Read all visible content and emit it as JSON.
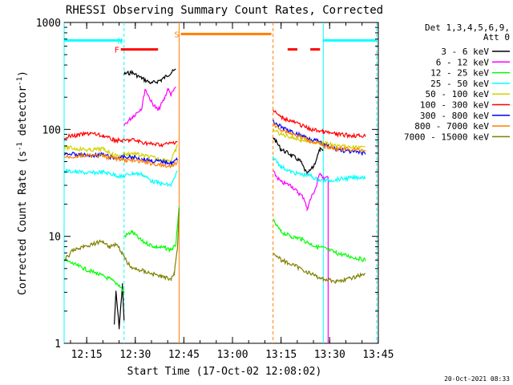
{
  "chart_data": {
    "type": "line",
    "title": "RHESSI Observing Summary Count Rates, Corrected",
    "xlabel": "Start Time (17-Oct-02 12:08:02)",
    "ylabel": "Corrected Count Rate (s",
    "ylabel_sup": "-1",
    "ylabel_tail": " detector",
    "ylabel_close": ")",
    "footer_timestamp": "20-Oct-2021 08:33",
    "y_scale": "log",
    "ylim": [
      1,
      1000
    ],
    "xlim_minutes_after_start": [
      0,
      97
    ],
    "y_ticks": [
      {
        "value": 1,
        "label": "1"
      },
      {
        "value": 10,
        "label": "10"
      },
      {
        "value": 100,
        "label": "100"
      },
      {
        "value": 1000,
        "label": "1000"
      }
    ],
    "x_ticks": [
      {
        "value": 6.97,
        "label": "12:15"
      },
      {
        "value": 21.97,
        "label": "12:30"
      },
      {
        "value": 36.97,
        "label": "12:45"
      },
      {
        "value": 51.97,
        "label": "13:00"
      },
      {
        "value": 66.97,
        "label": "13:15"
      },
      {
        "value": 81.97,
        "label": "13:30"
      },
      {
        "value": 96.97,
        "label": "13:45"
      }
    ],
    "legend_header": [
      "Det 1,3,4,5,6,9,",
      "Att 0"
    ],
    "legend_position": "right",
    "series": [
      {
        "name": "3 - 6 keV",
        "color": "#000000",
        "segments": [
          [
            [
              15.5,
              1.5
            ],
            [
              16,
              3
            ],
            [
              17,
              1.4
            ],
            [
              18,
              3.5
            ],
            [
              18.5,
              1.6
            ]
          ],
          [
            [
              18.5,
              330
            ],
            [
              21,
              340
            ],
            [
              24,
              300
            ],
            [
              27,
              270
            ],
            [
              30,
              290
            ],
            [
              33,
              340
            ],
            [
              34.5,
              360
            ]
          ],
          [
            [
              64.5,
              85
            ],
            [
              67,
              65
            ],
            [
              70,
              58
            ],
            [
              73,
              50
            ],
            [
              75,
              38
            ],
            [
              77,
              45
            ],
            [
              79,
              65
            ],
            [
              80,
              62
            ]
          ]
        ]
      },
      {
        "name": "6 - 12 keV",
        "color": "#ff00ff",
        "segments": [
          [
            [
              18.5,
              110
            ],
            [
              21,
              130
            ],
            [
              24,
              160
            ],
            [
              25,
              240
            ],
            [
              27,
              180
            ],
            [
              29,
              150
            ],
            [
              31,
              195
            ],
            [
              32,
              240
            ],
            [
              33,
              210
            ],
            [
              34.5,
              250
            ]
          ],
          [
            [
              64.5,
              40
            ],
            [
              67,
              32
            ],
            [
              70,
              30
            ],
            [
              72,
              26
            ],
            [
              74,
              23
            ],
            [
              75,
              18
            ],
            [
              76,
              22
            ],
            [
              78,
              30
            ],
            [
              79,
              40
            ],
            [
              80,
              35
            ]
          ],
          [
            [
              80,
              35
            ],
            [
              81.5,
              35
            ],
            [
              81.5,
              1
            ]
          ]
        ]
      },
      {
        "name": "12 - 25 keV",
        "color": "#00ff00",
        "segments": [
          [
            [
              0,
              6
            ],
            [
              3,
              5.5
            ],
            [
              6,
              5
            ],
            [
              10,
              4.5
            ],
            [
              14,
              4
            ],
            [
              17,
              3.5
            ],
            [
              18.5,
              3
            ]
          ],
          [
            [
              18.5,
              10
            ],
            [
              21,
              11
            ],
            [
              24,
              9
            ],
            [
              28,
              8
            ],
            [
              31,
              7.8
            ],
            [
              33,
              7.5
            ],
            [
              34,
              8
            ],
            [
              34.5,
              8.5
            ],
            [
              35,
              12
            ],
            [
              35.5,
              20
            ]
          ],
          [
            [
              64.5,
              14
            ],
            [
              67,
              11
            ],
            [
              70,
              10
            ],
            [
              73,
              9.5
            ],
            [
              76,
              8.5
            ],
            [
              78,
              8
            ],
            [
              80,
              7.8
            ],
            [
              84,
              7
            ],
            [
              88,
              6.5
            ],
            [
              93,
              6
            ]
          ]
        ]
      },
      {
        "name": "25 - 50 keV",
        "color": "#00ffff",
        "segments": [
          [
            [
              0,
              41
            ],
            [
              4,
              40
            ],
            [
              8,
              39
            ],
            [
              12,
              40
            ],
            [
              15,
              38
            ],
            [
              18,
              36
            ],
            [
              21,
              39
            ],
            [
              24,
              38
            ],
            [
              27,
              33
            ],
            [
              30,
              31
            ],
            [
              33,
              30
            ],
            [
              35,
              40
            ]
          ],
          [
            [
              64.5,
              55
            ],
            [
              67,
              45
            ],
            [
              70,
              40
            ],
            [
              73,
              38
            ],
            [
              76,
              37
            ],
            [
              78,
              34
            ],
            [
              80,
              33
            ],
            [
              84,
              34
            ],
            [
              88,
              35
            ],
            [
              93,
              36
            ]
          ]
        ]
      },
      {
        "name": "50 - 100 keV",
        "color": "#d2d200",
        "segments": [
          [
            [
              0,
              68
            ],
            [
              4,
              66
            ],
            [
              8,
              64
            ],
            [
              12,
              66
            ],
            [
              15,
              58
            ],
            [
              17,
              56
            ],
            [
              18.5,
              58
            ],
            [
              21,
              60
            ],
            [
              24,
              57
            ],
            [
              27,
              55
            ],
            [
              30,
              52
            ],
            [
              33,
              51
            ],
            [
              35,
              70
            ]
          ],
          [
            [
              64.5,
              100
            ],
            [
              67,
              90
            ],
            [
              70,
              85
            ],
            [
              73,
              80
            ],
            [
              76,
              78
            ],
            [
              78,
              76
            ],
            [
              80,
              75
            ],
            [
              84,
              70
            ],
            [
              88,
              68
            ],
            [
              93,
              67
            ]
          ]
        ]
      },
      {
        "name": "100 - 300 keV",
        "color": "#ff0000",
        "segments": [
          [
            [
              0,
              85
            ],
            [
              4,
              88
            ],
            [
              8,
              92
            ],
            [
              12,
              87
            ],
            [
              15,
              80
            ],
            [
              18,
              78
            ],
            [
              21,
              80
            ],
            [
              24,
              76
            ],
            [
              27,
              73
            ],
            [
              30,
              72
            ],
            [
              33,
              74
            ],
            [
              35,
              78
            ]
          ],
          [
            [
              64.5,
              150
            ],
            [
              67,
              130
            ],
            [
              70,
              120
            ],
            [
              73,
              110
            ],
            [
              76,
              100
            ],
            [
              78,
              98
            ],
            [
              80,
              95
            ],
            [
              84,
              90
            ],
            [
              88,
              88
            ],
            [
              93,
              87
            ]
          ]
        ]
      },
      {
        "name": "300 - 800 keV",
        "color": "#0000ff",
        "segments": [
          [
            [
              0,
              60
            ],
            [
              4,
              58
            ],
            [
              8,
              57
            ],
            [
              12,
              58
            ],
            [
              15,
              54
            ],
            [
              18,
              55
            ],
            [
              21,
              55
            ],
            [
              24,
              53
            ],
            [
              27,
              51
            ],
            [
              30,
              50
            ],
            [
              33,
              49
            ],
            [
              35,
              52
            ]
          ],
          [
            [
              64.5,
              120
            ],
            [
              67,
              105
            ],
            [
              70,
              95
            ],
            [
              73,
              88
            ],
            [
              76,
              82
            ],
            [
              78,
              78
            ],
            [
              80,
              72
            ],
            [
              84,
              65
            ],
            [
              88,
              62
            ],
            [
              93,
              60
            ]
          ]
        ]
      },
      {
        "name": "800 - 7000 keV",
        "color": "#ff7f00",
        "segments": [
          [
            [
              0,
              55
            ],
            [
              4,
              56
            ],
            [
              8,
              57
            ],
            [
              12,
              56
            ],
            [
              15,
              54
            ],
            [
              18,
              52
            ],
            [
              21,
              51
            ],
            [
              24,
              50
            ],
            [
              27,
              48
            ],
            [
              30,
              46
            ],
            [
              33,
              45
            ],
            [
              35,
              50
            ]
          ],
          [
            [
              64.5,
              110
            ],
            [
              67,
              100
            ],
            [
              70,
              92
            ],
            [
              73,
              85
            ],
            [
              76,
              78
            ],
            [
              78,
              75
            ],
            [
              80,
              70
            ],
            [
              84,
              66
            ],
            [
              88,
              65
            ],
            [
              93,
              64
            ]
          ]
        ]
      },
      {
        "name": "7000 - 15000 keV",
        "color": "#808000",
        "segments": [
          [
            [
              0,
              6
            ],
            [
              3,
              7.5
            ],
            [
              6,
              8
            ],
            [
              9,
              8.5
            ],
            [
              12,
              9
            ],
            [
              14,
              8
            ],
            [
              16,
              8.5
            ],
            [
              18,
              7
            ],
            [
              19,
              6
            ],
            [
              21,
              5
            ],
            [
              24,
              4.8
            ],
            [
              27,
              4.5
            ],
            [
              30,
              4.2
            ],
            [
              33,
              4
            ],
            [
              34,
              4.5
            ],
            [
              35,
              8
            ],
            [
              35.5,
              18
            ]
          ],
          [
            [
              64.5,
              7
            ],
            [
              67,
              6
            ],
            [
              70,
              5.5
            ],
            [
              73,
              5
            ],
            [
              76,
              4.5
            ],
            [
              78,
              4.2
            ],
            [
              80,
              4
            ],
            [
              84,
              3.8
            ],
            [
              88,
              4
            ],
            [
              93,
              4.5
            ]
          ]
        ]
      }
    ],
    "vertical_markers": [
      {
        "minute": 0,
        "color": "#00ffff",
        "style": "solid"
      },
      {
        "minute": 18.5,
        "color": "#00ffff",
        "style": "dashed"
      },
      {
        "minute": 35.5,
        "color": "#ff7f00",
        "style": "solid"
      },
      {
        "minute": 64.5,
        "color": "#ff7f00",
        "style": "dashed"
      },
      {
        "minute": 80,
        "color": "#00ffff",
        "style": "solid"
      },
      {
        "minute": 96.5,
        "color": "#00ffff",
        "style": "dashed"
      }
    ],
    "flag_bars": [
      {
        "label": "",
        "color": "#00ffff",
        "from": 0,
        "to": 18,
        "y": 680
      },
      {
        "label": "N",
        "color": "#00ffff",
        "from": 18.5,
        "to": 18.5,
        "y": 680
      },
      {
        "label": "S",
        "color": "#ff7f00",
        "from": 36,
        "to": 64,
        "y": 780
      },
      {
        "label": "F",
        "color": "#ff0000",
        "from": 17.5,
        "to": 29,
        "y": 560
      },
      {
        "label": "",
        "color": "#ff0000",
        "from": 69,
        "to": 72,
        "y": 560
      },
      {
        "label": "",
        "color": "#ff0000",
        "from": 76,
        "to": 79,
        "y": 560
      },
      {
        "label": "",
        "color": "#00ffff",
        "from": 80,
        "to": 96.5,
        "y": 680
      }
    ]
  }
}
